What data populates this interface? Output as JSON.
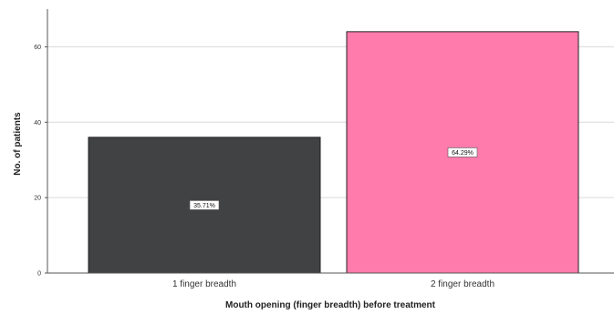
{
  "chart_data": {
    "type": "bar",
    "categories": [
      "1 finger breadth",
      "2 finger breadth"
    ],
    "values": [
      36,
      64
    ],
    "data_labels": [
      "35.71%",
      "64.29%"
    ],
    "xlabel": "Mouth opening (finger breadth) before treatment",
    "ylabel": "No. of patients",
    "ylim": [
      0,
      70
    ],
    "yticks": [
      0,
      20,
      40,
      60
    ],
    "grid": "horizontal",
    "colors": {
      "bars": [
        "#404244",
        "#ff7bac"
      ],
      "bar_stroke": "#222222",
      "grid": "#d9d9d9",
      "axis": "#555555"
    }
  }
}
